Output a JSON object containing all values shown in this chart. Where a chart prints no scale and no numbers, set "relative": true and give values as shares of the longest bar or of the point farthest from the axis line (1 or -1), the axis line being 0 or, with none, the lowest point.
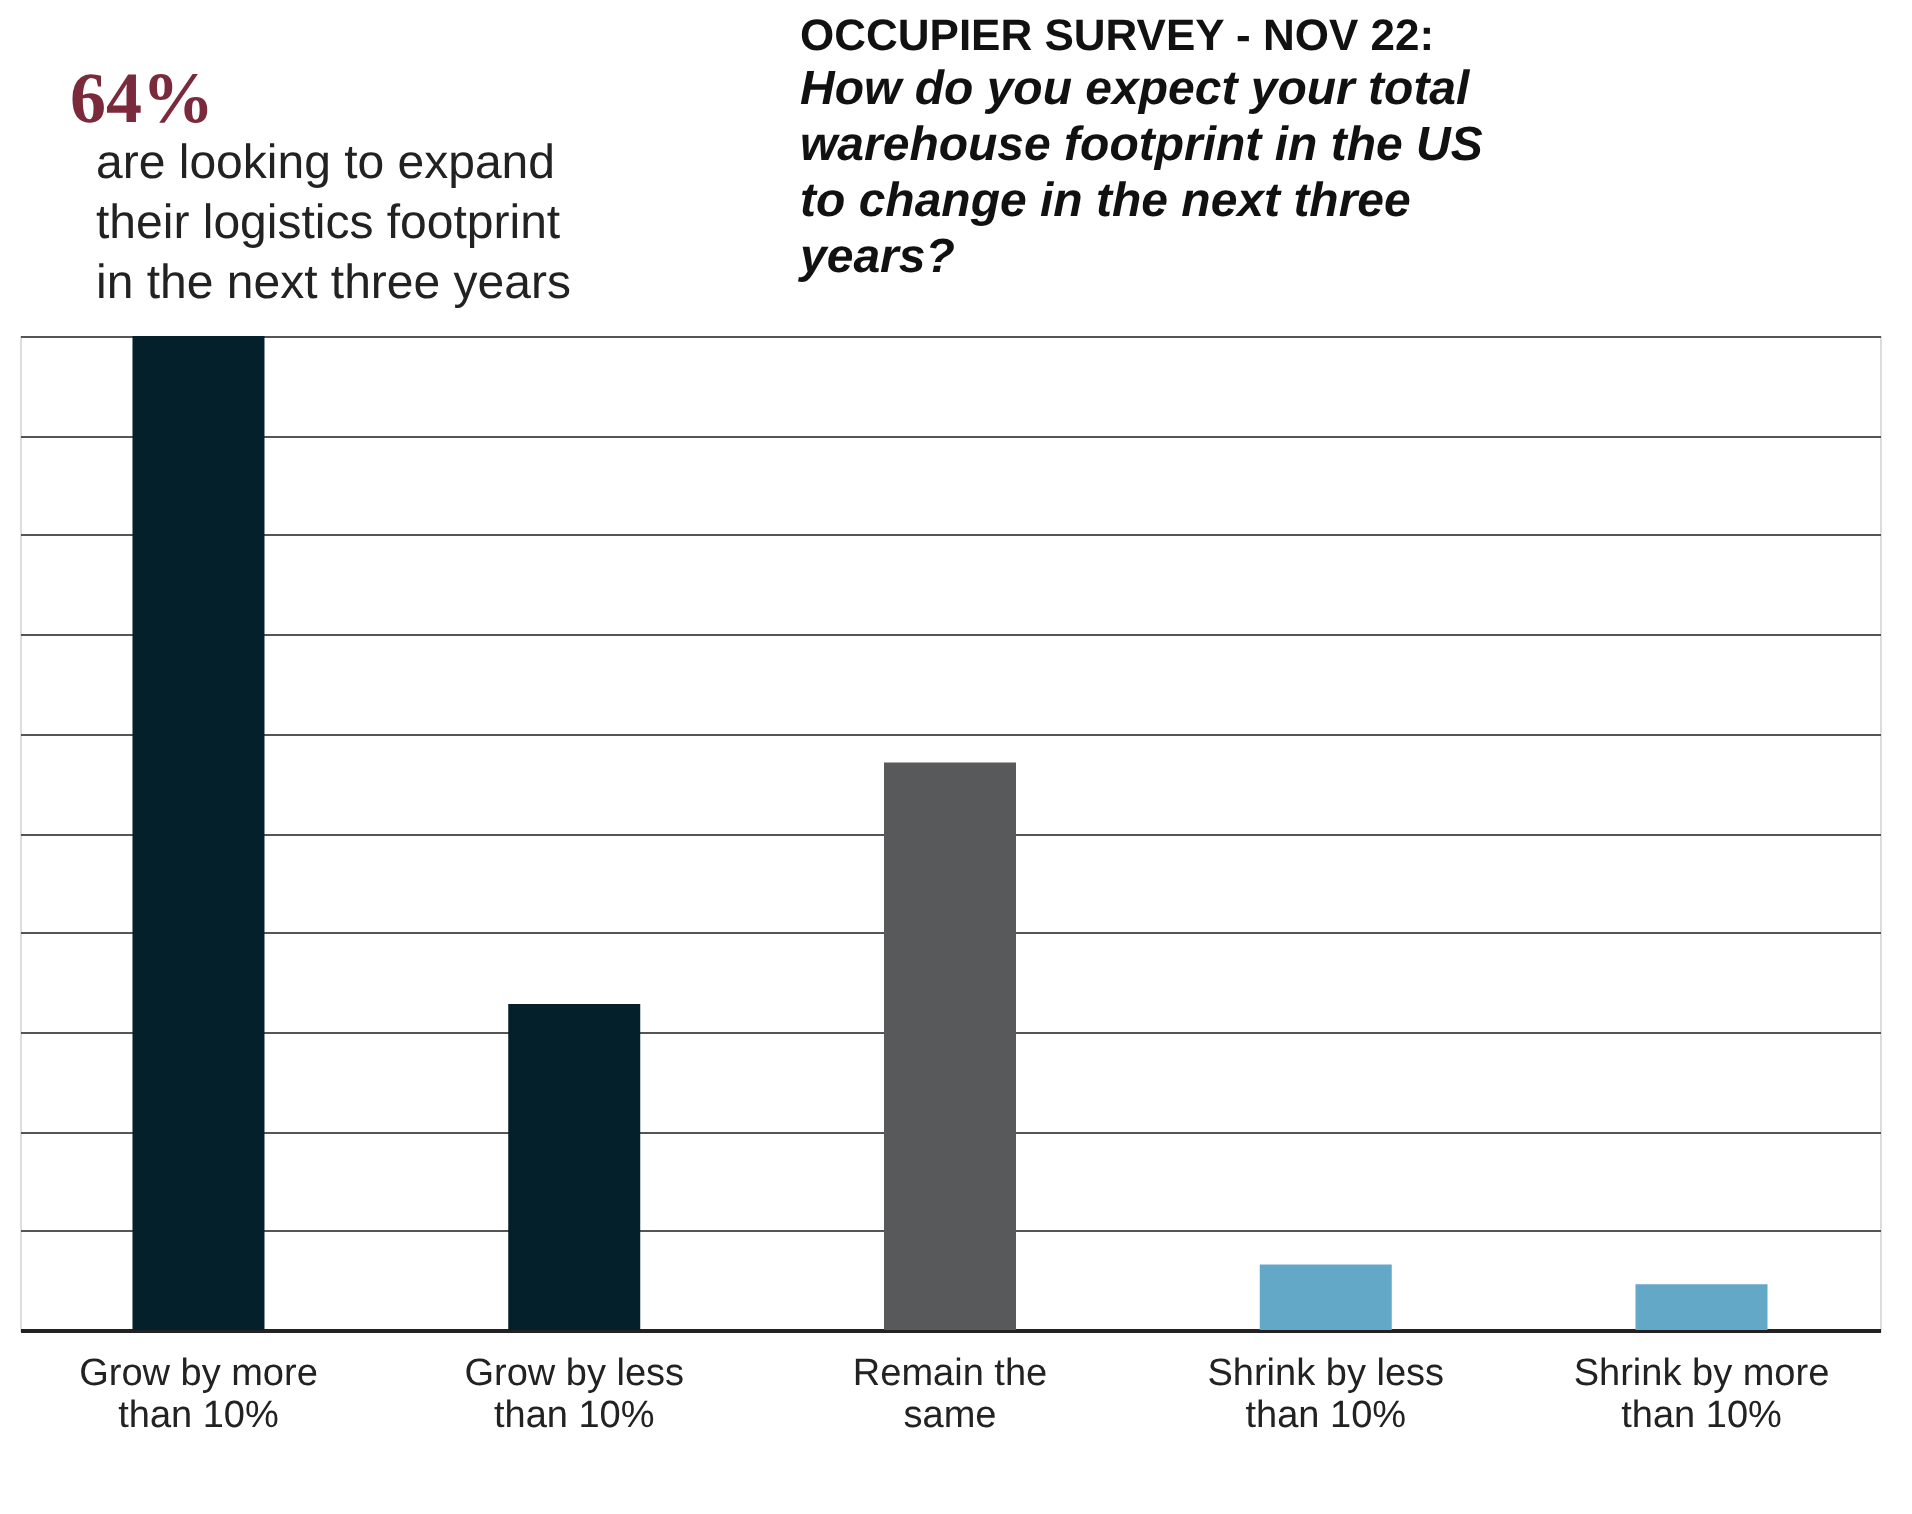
{
  "chart_data": {
    "type": "bar",
    "title": "OCCUPIER SURVEY - NOV 22:",
    "subtitle": "How do you expect your total warehouse footprint in the US to change in the next three years?",
    "categories": [
      "Grow by more than 10%",
      "Grow by less than 10%",
      "Remain the same",
      "Shrink by less than 10%",
      "Shrink by more than 10%"
    ],
    "values": [
      1,
      0.328,
      0.571,
      0.066,
      0.046
    ],
    "colors": [
      "#04202a",
      "#04202a",
      "#58595b",
      "#64a8c8",
      "#64a8c8"
    ],
    "relative": true,
    "grid": "y",
    "annotations": [
      "64%",
      "are looking to expand their logistics footprint in the next three years"
    ]
  }
}
